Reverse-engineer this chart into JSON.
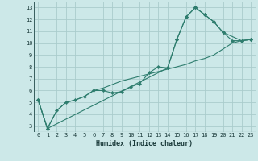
{
  "xlabel": "Humidex (Indice chaleur)",
  "bg_color": "#cce8e8",
  "grid_color": "#aacccc",
  "line_color": "#2e7d6e",
  "xlim": [
    -0.5,
    23.5
  ],
  "ylim": [
    2.5,
    13.5
  ],
  "xticks": [
    0,
    1,
    2,
    3,
    4,
    5,
    6,
    7,
    8,
    9,
    10,
    11,
    12,
    13,
    14,
    15,
    16,
    17,
    18,
    19,
    20,
    21,
    22,
    23
  ],
  "yticks": [
    3,
    4,
    5,
    6,
    7,
    8,
    9,
    10,
    11,
    12,
    13
  ],
  "line1_x": [
    0,
    1,
    2,
    3,
    4,
    5,
    6,
    7,
    8,
    9,
    10,
    11,
    12,
    13,
    14,
    15,
    16,
    17,
    18,
    19,
    20,
    21,
    22,
    23
  ],
  "line1_y": [
    5.2,
    2.8,
    4.3,
    5.0,
    5.2,
    5.5,
    6.0,
    6.0,
    5.8,
    5.9,
    6.3,
    6.6,
    7.5,
    8.0,
    7.9,
    10.3,
    12.2,
    13.0,
    12.4,
    11.8,
    10.9,
    10.2,
    10.2,
    10.3
  ],
  "line2_x": [
    0,
    1,
    2,
    3,
    4,
    5,
    6,
    7,
    8,
    9,
    10,
    11,
    12,
    13,
    14,
    15,
    16,
    17,
    18,
    19,
    20,
    21,
    22,
    23
  ],
  "line2_y": [
    5.2,
    2.8,
    4.3,
    5.0,
    5.2,
    5.5,
    6.0,
    6.2,
    6.5,
    6.8,
    7.0,
    7.2,
    7.4,
    7.6,
    7.8,
    8.0,
    8.2,
    8.5,
    8.7,
    9.0,
    9.5,
    10.0,
    10.2,
    10.3
  ],
  "line3_x": [
    0,
    1,
    14,
    15,
    16,
    17,
    18,
    19,
    20,
    22,
    23
  ],
  "line3_y": [
    5.2,
    2.8,
    7.9,
    10.3,
    12.2,
    13.0,
    12.4,
    11.8,
    10.9,
    10.2,
    10.3
  ],
  "tick_fontsize": 5.0,
  "xlabel_fontsize": 6.0,
  "marker_size": 2.2,
  "line_width": 0.8
}
